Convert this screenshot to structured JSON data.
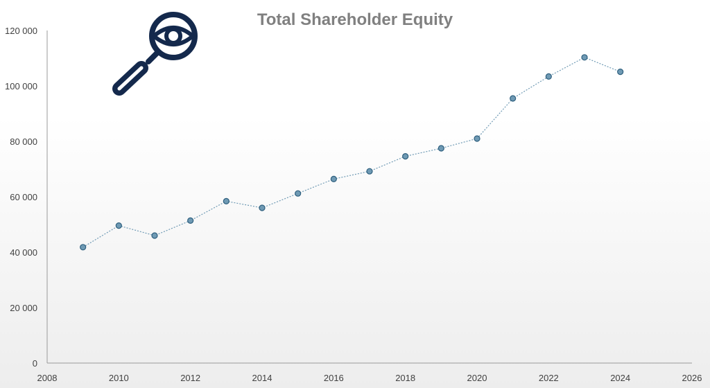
{
  "chart_data": {
    "type": "scatter",
    "title": "Total Shareholder Equity",
    "xlabel": "",
    "ylabel": "",
    "x_ticks": [
      "2008",
      "2010",
      "2012",
      "2014",
      "2016",
      "2018",
      "2020",
      "2022",
      "2024",
      "2026"
    ],
    "y_ticks": [
      "0",
      "20 000",
      "40 000",
      "60 000",
      "80 000",
      "100 000",
      "120 000"
    ],
    "xlim": [
      2008,
      2026
    ],
    "ylim": [
      0,
      120000
    ],
    "grid": false,
    "legend": "none",
    "series": [
      {
        "x": [
          2009,
          2010,
          2011,
          2012,
          2013,
          2014,
          2015,
          2016,
          2017,
          2018,
          2019,
          2020,
          2021,
          2022,
          2023,
          2024
        ],
        "y": [
          41800,
          49600,
          46000,
          51400,
          58400,
          56000,
          61200,
          66400,
          69200,
          74600,
          77500,
          81000,
          95500,
          103400,
          110300,
          105100
        ]
      }
    ],
    "colors": {
      "marker_fill": "#6f9ab4",
      "marker_stroke": "#2e5f7e",
      "line": "#6f9ab4",
      "axis": "#999999",
      "background_fade": "#ededed",
      "icon": "#14294c"
    },
    "icon": "magnifier-eye-icon"
  }
}
